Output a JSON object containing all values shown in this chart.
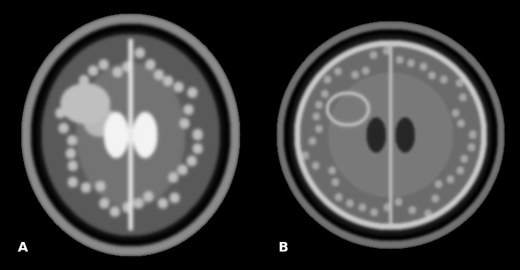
{
  "background_color": "#000000",
  "label_A": "A",
  "label_B": "B",
  "label_color": "#ffffff",
  "label_fontsize": 14,
  "fig_width": 7.6,
  "fig_height": 3.95,
  "panel_A_xlim": [
    0,
    1
  ],
  "panel_A_ylim": [
    0,
    1
  ],
  "panel_B_xlim": [
    0,
    1
  ],
  "panel_B_ylim": [
    0,
    1
  ]
}
